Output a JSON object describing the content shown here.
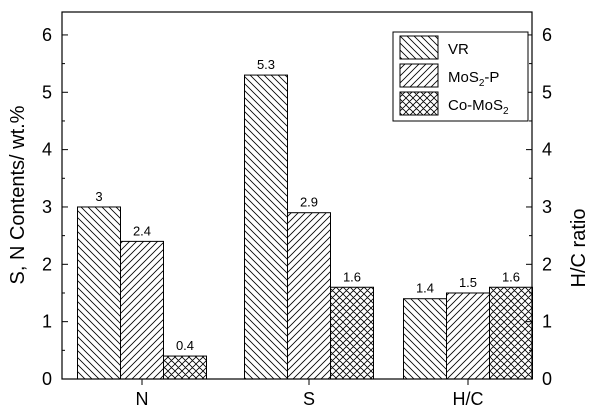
{
  "chart_data": {
    "type": "bar",
    "categories": [
      "N",
      "S",
      "H/C"
    ],
    "series": [
      {
        "name": "VR",
        "values": [
          3,
          5.3,
          1.4
        ],
        "pattern": "backslash-hatch"
      },
      {
        "name": "MoS2-P",
        "values": [
          2.4,
          2.9,
          1.5
        ],
        "pattern": "slash-hatch"
      },
      {
        "name": "Co-MoS2",
        "values": [
          0.4,
          1.6,
          1.6
        ],
        "pattern": "cross-hatch"
      }
    ],
    "data_labels": [
      [
        "3",
        "2.4",
        "0.4"
      ],
      [
        "5.3",
        "2.9",
        "1.6"
      ],
      [
        "1.4",
        "1.5",
        "1.6"
      ]
    ],
    "ylabel_left": "S, N Contents/ wt.%",
    "ylabel_right": "H/C ratio",
    "ylim": [
      0,
      6.4
    ],
    "yticks": [
      0,
      1,
      2,
      3,
      4,
      5,
      6
    ],
    "ytick_labels": [
      "0",
      "1",
      "2",
      "3",
      "4",
      "5",
      "6"
    ],
    "legend_position": "top-right",
    "grid": false
  }
}
